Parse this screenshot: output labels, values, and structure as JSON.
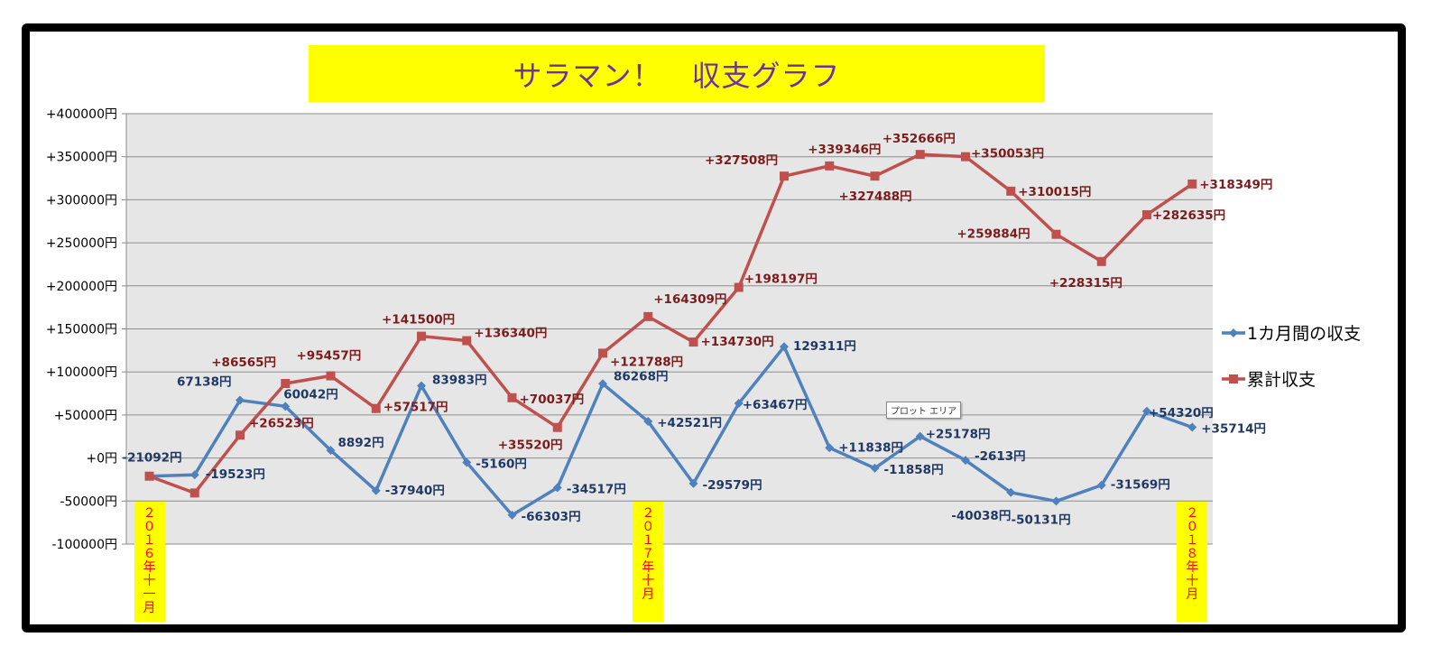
{
  "chart_data": {
    "type": "line",
    "title": "サラマン！　収支グラフ",
    "ylim": [
      -100000,
      400000
    ],
    "yticks": [
      "+400000円",
      "+350000円",
      "+300000円",
      "+250000円",
      "+200000円",
      "+150000円",
      "+100000円",
      "+50000円",
      "+0円",
      "-50000円",
      "-100000円"
    ],
    "grid": true,
    "legend_position": "right",
    "x": [
      0,
      1,
      2,
      3,
      4,
      5,
      6,
      7,
      8,
      9,
      10,
      11,
      12,
      13,
      14,
      15,
      16,
      17,
      18,
      19,
      20,
      21,
      22,
      23
    ],
    "series": [
      {
        "name": "1カ月間の収支",
        "color": "#4f81bd",
        "marker": "diamond",
        "values": [
          -21092,
          -19523,
          67138,
          60042,
          8892,
          -37940,
          83983,
          -5160,
          -66303,
          -34517,
          86268,
          42521,
          -29579,
          63467,
          129311,
          11838,
          -11858,
          25178,
          -2613,
          -40038,
          -50131,
          -31569,
          54320,
          35714
        ],
        "labels": [
          "-21092円",
          "-19523円",
          "67138円",
          "60042円",
          "8892円",
          "-37940円",
          "83983円",
          "-5160円",
          "-66303円",
          "-34517円",
          "86268円",
          "+42521円",
          "-29579円",
          "+63467円",
          "129311円",
          "+11838円",
          "-11858円",
          "+25178円",
          "-2613円",
          "-40038円",
          "-50131円",
          "-31569円",
          "+54320円",
          "+35714円"
        ]
      },
      {
        "name": "累計収支",
        "color": "#c0504d",
        "marker": "square",
        "values": [
          -21092,
          -40615,
          26523,
          86565,
          95457,
          57517,
          141500,
          136340,
          70037,
          35520,
          121788,
          164309,
          134730,
          198197,
          327508,
          339346,
          327488,
          352666,
          350053,
          310015,
          259884,
          228315,
          282635,
          318349
        ],
        "labels": [
          "",
          "",
          "+26523円",
          "+86565円",
          "+95457円",
          "+57517円",
          "+141500円",
          "+136340円",
          "+70037円",
          "+35520円",
          "+121788円",
          "+164309円",
          "+134730円",
          "+198197円",
          "+327508円",
          "+339346円",
          "+327488円",
          "+352666円",
          "+350053円",
          "+310015円",
          "+259884円",
          "+228315円",
          "+282635円",
          "+318349円"
        ]
      }
    ],
    "date_markers": [
      {
        "index": 0,
        "text": "２０１６年十一月"
      },
      {
        "index": 11,
        "text": "２０１７年十月"
      },
      {
        "index": 23,
        "text": "２０１８年十月"
      }
    ]
  },
  "tooltip": "プロット エリア"
}
